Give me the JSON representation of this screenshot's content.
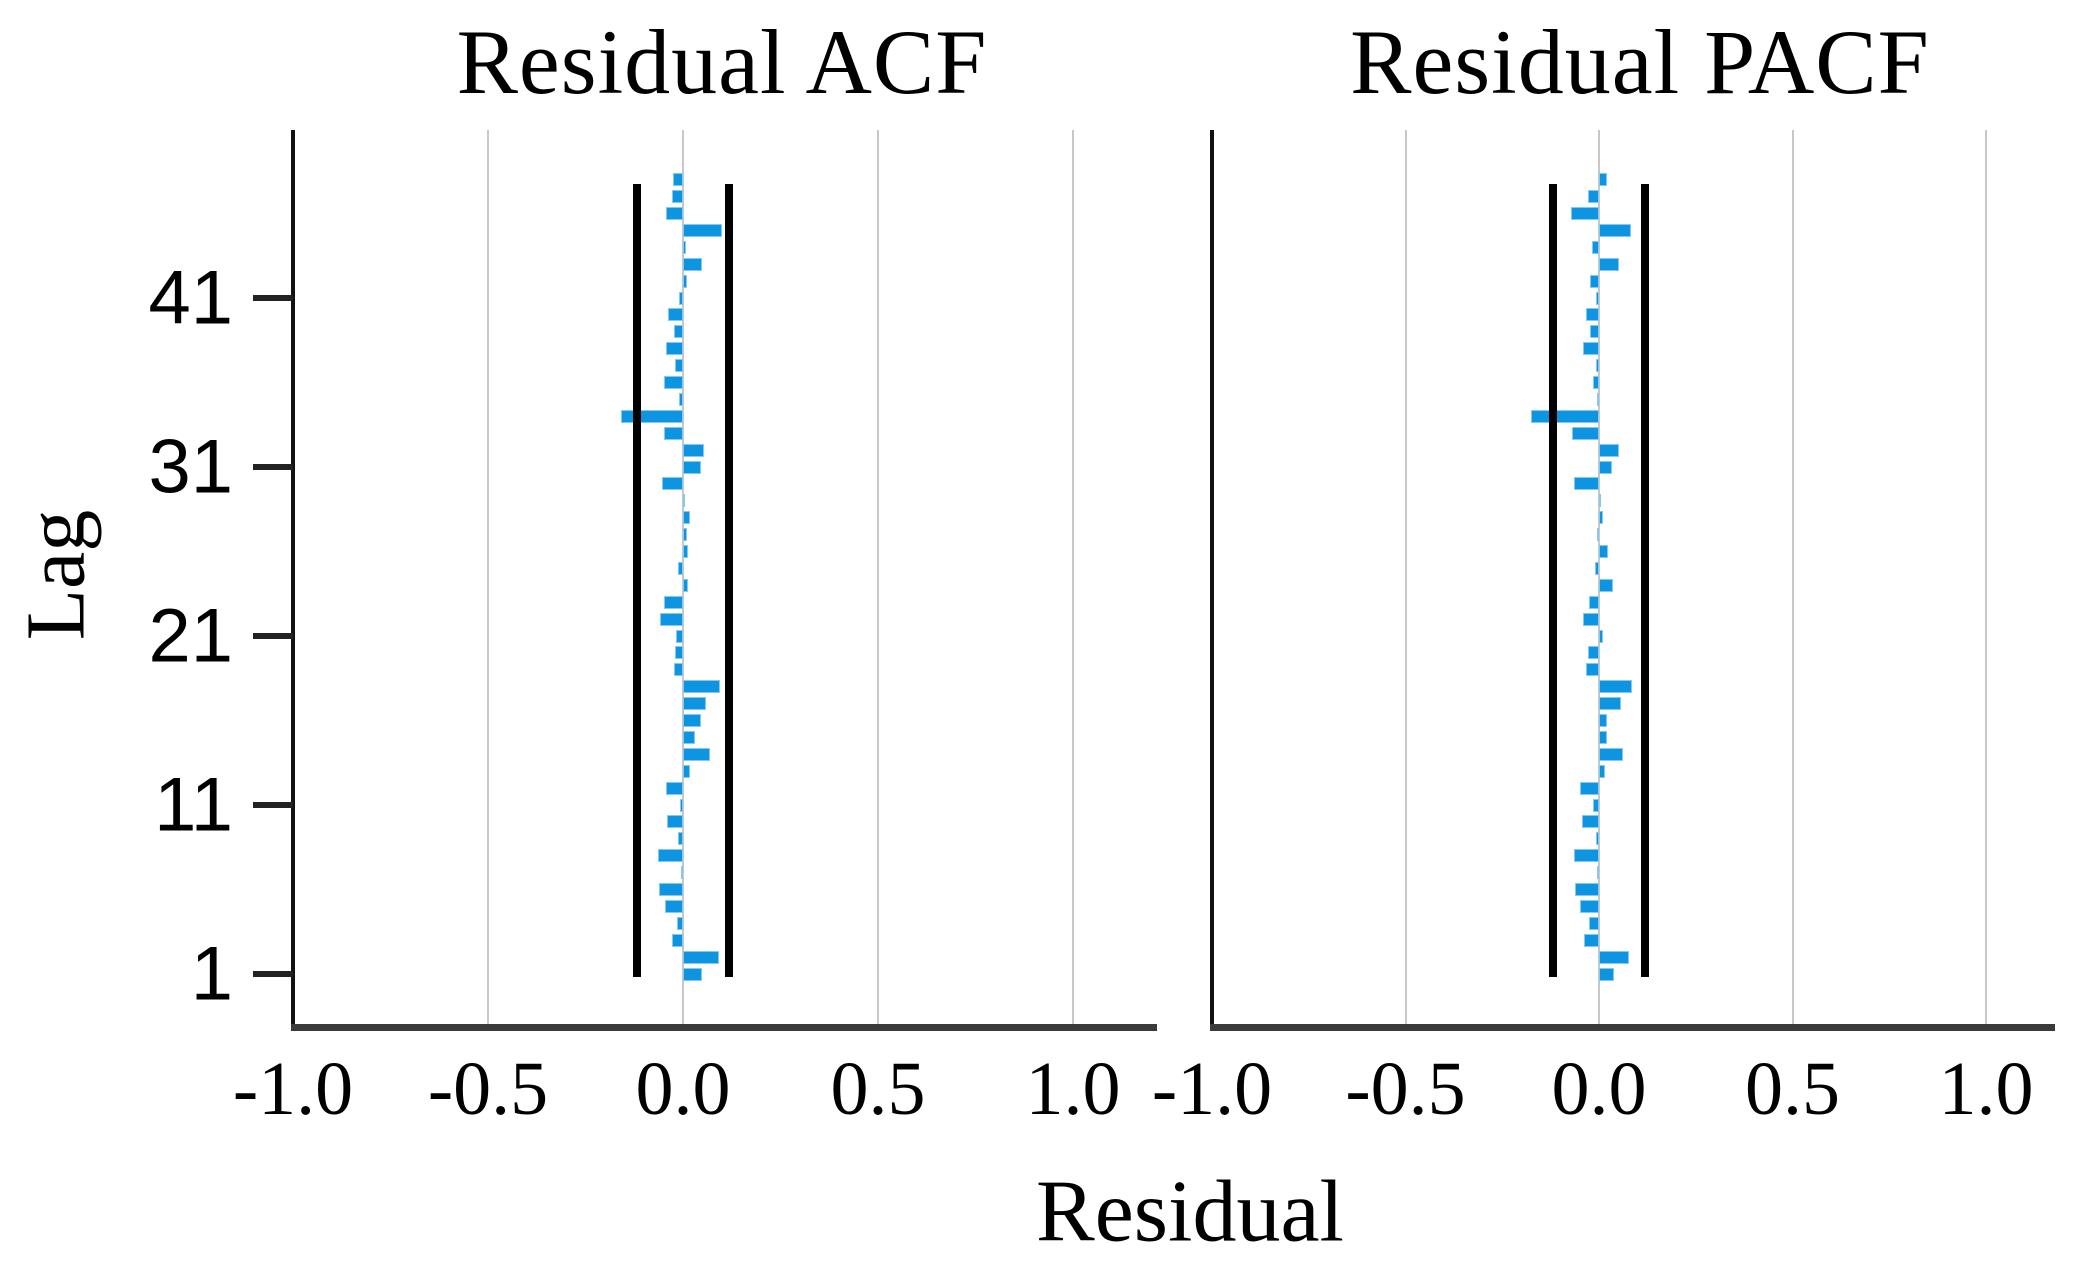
{
  "figure": {
    "xlabel_shared": "Residual",
    "ylabel": "Lag",
    "background": "#ffffff"
  },
  "style": {
    "bar_fill": "#0d95e1",
    "bar_edge": "#86c9f0",
    "ci_line_color": "#000000",
    "gridline_color": "#c8c8c8",
    "axis_color": "#3a3a3a",
    "frame_color": "#111111",
    "text_color": "#000000"
  },
  "chart_data": [
    {
      "type": "bar",
      "panel_id": "acf",
      "title": "Residual ACF",
      "xlabel": "Residual",
      "ylabel": "Lag",
      "orientation": "horizontal",
      "grid": true,
      "legend": false,
      "xlim": [
        -1.0,
        1.2
      ],
      "lag_range": [
        1,
        48
      ],
      "xticks": [
        -1.0,
        -0.5,
        0.0,
        0.5,
        1.0
      ],
      "xtick_labels": [
        "-1.0",
        "-0.5",
        "0.0",
        "0.5",
        "1.0"
      ],
      "yticks": [
        1,
        11,
        21,
        31,
        41
      ],
      "ytick_labels": [
        "1",
        "11",
        "21",
        "31",
        "41"
      ],
      "confidence_limit": 0.118,
      "values": [
        0.048,
        0.093,
        -0.028,
        -0.016,
        -0.046,
        -0.062,
        -0.006,
        -0.064,
        -0.013,
        -0.042,
        -0.008,
        -0.044,
        0.019,
        0.069,
        0.032,
        0.045,
        0.058,
        0.096,
        -0.022,
        -0.02,
        -0.018,
        -0.058,
        -0.048,
        0.012,
        -0.013,
        0.013,
        0.01,
        0.017,
        0.004,
        -0.055,
        0.047,
        0.053,
        -0.048,
        -0.16,
        -0.01,
        -0.05,
        -0.02,
        -0.043,
        -0.023,
        -0.038,
        -0.01,
        0.011,
        0.049,
        0.008,
        0.1,
        -0.043,
        -0.027,
        -0.026
      ]
    },
    {
      "type": "bar",
      "panel_id": "pacf",
      "title": "Residual PACF",
      "xlabel": "Residual",
      "ylabel": "Lag",
      "orientation": "horizontal",
      "grid": true,
      "legend": false,
      "xlim": [
        -1.0,
        1.2
      ],
      "lag_range": [
        1,
        48
      ],
      "xticks": [
        -1.0,
        -0.5,
        0.0,
        0.5,
        1.0
      ],
      "xtick_labels": [
        "-1.0",
        "-0.5",
        "0.0",
        "0.5",
        "1.0"
      ],
      "yticks": [
        1,
        11,
        21,
        31,
        41
      ],
      "ytick_labels": [
        "1",
        "11",
        "21",
        "31",
        "41"
      ],
      "confidence_limit": 0.118,
      "values": [
        0.039,
        0.078,
        -0.04,
        -0.027,
        -0.05,
        -0.063,
        -0.005,
        -0.065,
        -0.008,
        -0.044,
        -0.016,
        -0.05,
        0.015,
        0.062,
        0.02,
        0.021,
        0.058,
        0.086,
        -0.034,
        -0.029,
        0.01,
        -0.041,
        -0.026,
        0.036,
        -0.01,
        0.024,
        -0.005,
        0.01,
        0.004,
        -0.064,
        0.033,
        0.052,
        -0.07,
        -0.175,
        -0.006,
        -0.015,
        -0.008,
        -0.042,
        -0.022,
        -0.034,
        -0.007,
        -0.022,
        0.052,
        -0.017,
        0.082,
        -0.072,
        -0.029,
        0.02
      ]
    }
  ]
}
